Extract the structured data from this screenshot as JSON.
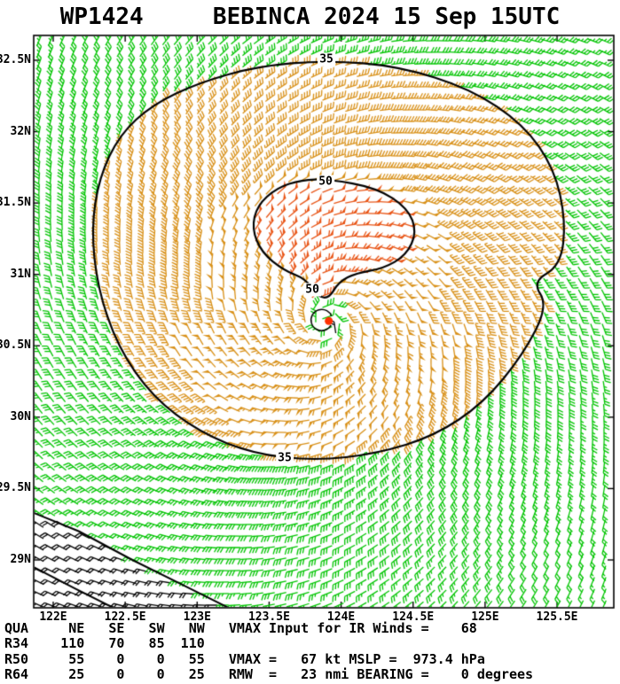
{
  "chart_data": {
    "type": "wind-barb-map",
    "title": "WP1424     BEBINCA 2024 15 Sep 15UTC",
    "storm": {
      "id": "WP1424",
      "name": "BEBINCA",
      "datetime": "2024 15 Sep 15UTC"
    },
    "axes": {
      "lon_ticks": [
        {
          "value": 122.0,
          "label": "122E"
        },
        {
          "value": 122.5,
          "label": "122.5E"
        },
        {
          "value": 123.0,
          "label": "123E"
        },
        {
          "value": 123.5,
          "label": "123.5E"
        },
        {
          "value": 124.0,
          "label": "124E"
        },
        {
          "value": 124.5,
          "label": "124.5E"
        },
        {
          "value": 125.0,
          "label": "125E"
        },
        {
          "value": 125.5,
          "label": "125.5E"
        }
      ],
      "lat_ticks": [
        {
          "value": 32.5,
          "label": "32.5N"
        },
        {
          "value": 32.0,
          "label": "32N"
        },
        {
          "value": 31.5,
          "label": "31.5N"
        },
        {
          "value": 31.0,
          "label": "31N"
        },
        {
          "value": 30.5,
          "label": "30.5N"
        },
        {
          "value": 30.0,
          "label": "30N"
        },
        {
          "value": 29.5,
          "label": "29.5N"
        },
        {
          "value": 29.0,
          "label": "29N"
        }
      ]
    },
    "center": {
      "lon": 123.902,
      "lat": 30.668
    },
    "intensity": {
      "vmax_kt": 67,
      "vmax_input_ir_kt": 68,
      "mslp_hpa": 973.4,
      "rmw_nmi": 23,
      "bearing_deg": 0
    },
    "wind_radii_nmi": {
      "quadrant_order": [
        "NE",
        "SE",
        "SW",
        "NW"
      ],
      "R34": [
        110,
        70,
        85,
        110
      ],
      "R50": [
        55,
        0,
        0,
        55
      ],
      "R64": [
        25,
        0,
        0,
        25
      ]
    },
    "speed_colors": {
      "below_34": "#00c400",
      "34_to_49": "#d89018",
      "50_plus": "#e85415",
      "outside_domain": "#000000",
      "center_dot": "#ff3000"
    },
    "eye_radius_nmi": 9,
    "contours": [
      {
        "level": 35,
        "points_lonlat": [
          [
            123.898,
            32.5
          ],
          [
            124.403,
            32.457
          ],
          [
            124.896,
            32.301
          ],
          [
            125.265,
            32.053
          ],
          [
            125.481,
            31.743
          ],
          [
            125.561,
            31.371
          ],
          [
            125.524,
            31.06
          ],
          [
            125.327,
            30.949
          ],
          [
            125.438,
            30.781
          ],
          [
            125.265,
            30.44
          ],
          [
            124.988,
            30.098
          ],
          [
            124.649,
            29.869
          ],
          [
            124.249,
            29.745
          ],
          [
            123.818,
            29.695
          ],
          [
            123.386,
            29.745
          ],
          [
            123.017,
            29.894
          ],
          [
            122.69,
            30.142
          ],
          [
            122.45,
            30.49
          ],
          [
            122.308,
            30.905
          ],
          [
            122.265,
            31.321
          ],
          [
            122.32,
            31.681
          ],
          [
            122.462,
            31.979
          ],
          [
            122.69,
            32.19
          ],
          [
            123.017,
            32.345
          ],
          [
            123.417,
            32.457
          ]
        ]
      },
      {
        "level": 50,
        "points_lonlat": [
          [
            123.91,
            31.668
          ],
          [
            124.249,
            31.606
          ],
          [
            124.464,
            31.463
          ],
          [
            124.526,
            31.296
          ],
          [
            124.452,
            31.134
          ],
          [
            124.292,
            31.041
          ],
          [
            124.107,
            31.01
          ],
          [
            123.984,
            30.948
          ],
          [
            123.91,
            30.824
          ],
          [
            123.818,
            30.861
          ],
          [
            123.756,
            30.967
          ],
          [
            123.602,
            31.029
          ],
          [
            123.448,
            31.153
          ],
          [
            123.38,
            31.321
          ],
          [
            123.417,
            31.482
          ],
          [
            123.553,
            31.606
          ],
          [
            123.725,
            31.662
          ]
        ]
      }
    ],
    "contour_labels": [
      {
        "text": "35",
        "lon": 123.898,
        "lat": 32.505
      },
      {
        "text": "35",
        "lon": 123.608,
        "lat": 29.714
      },
      {
        "text": "50",
        "lon": 123.892,
        "lat": 31.65
      },
      {
        "text": "50",
        "lon": 123.8,
        "lat": 30.893
      }
    ],
    "domain_boundary": {
      "region_points_lonlat": [
        [
          121.864,
          29.33
        ],
        [
          122.18,
          29.2
        ],
        [
          122.55,
          29.0
        ],
        [
          122.89,
          28.83
        ],
        [
          123.22,
          28.664
        ],
        [
          121.864,
          28.664
        ]
      ],
      "line2_lonlat": [
        [
          121.864,
          28.95
        ],
        [
          122.15,
          28.8
        ],
        [
          122.42,
          28.664
        ]
      ]
    }
  },
  "readout": {
    "line1": "QUA     NE   SE   SW   NW   VMAX Input for IR Winds =    68",
    "line2": "R34    110   70   85  110",
    "line3": "R50     55    0    0   55   VMAX =   67 kt MSLP =  973.4 hPa",
    "line4": "R64     25    0    0   25   RMW  =   23 nmi BEARING =    0 degrees"
  }
}
